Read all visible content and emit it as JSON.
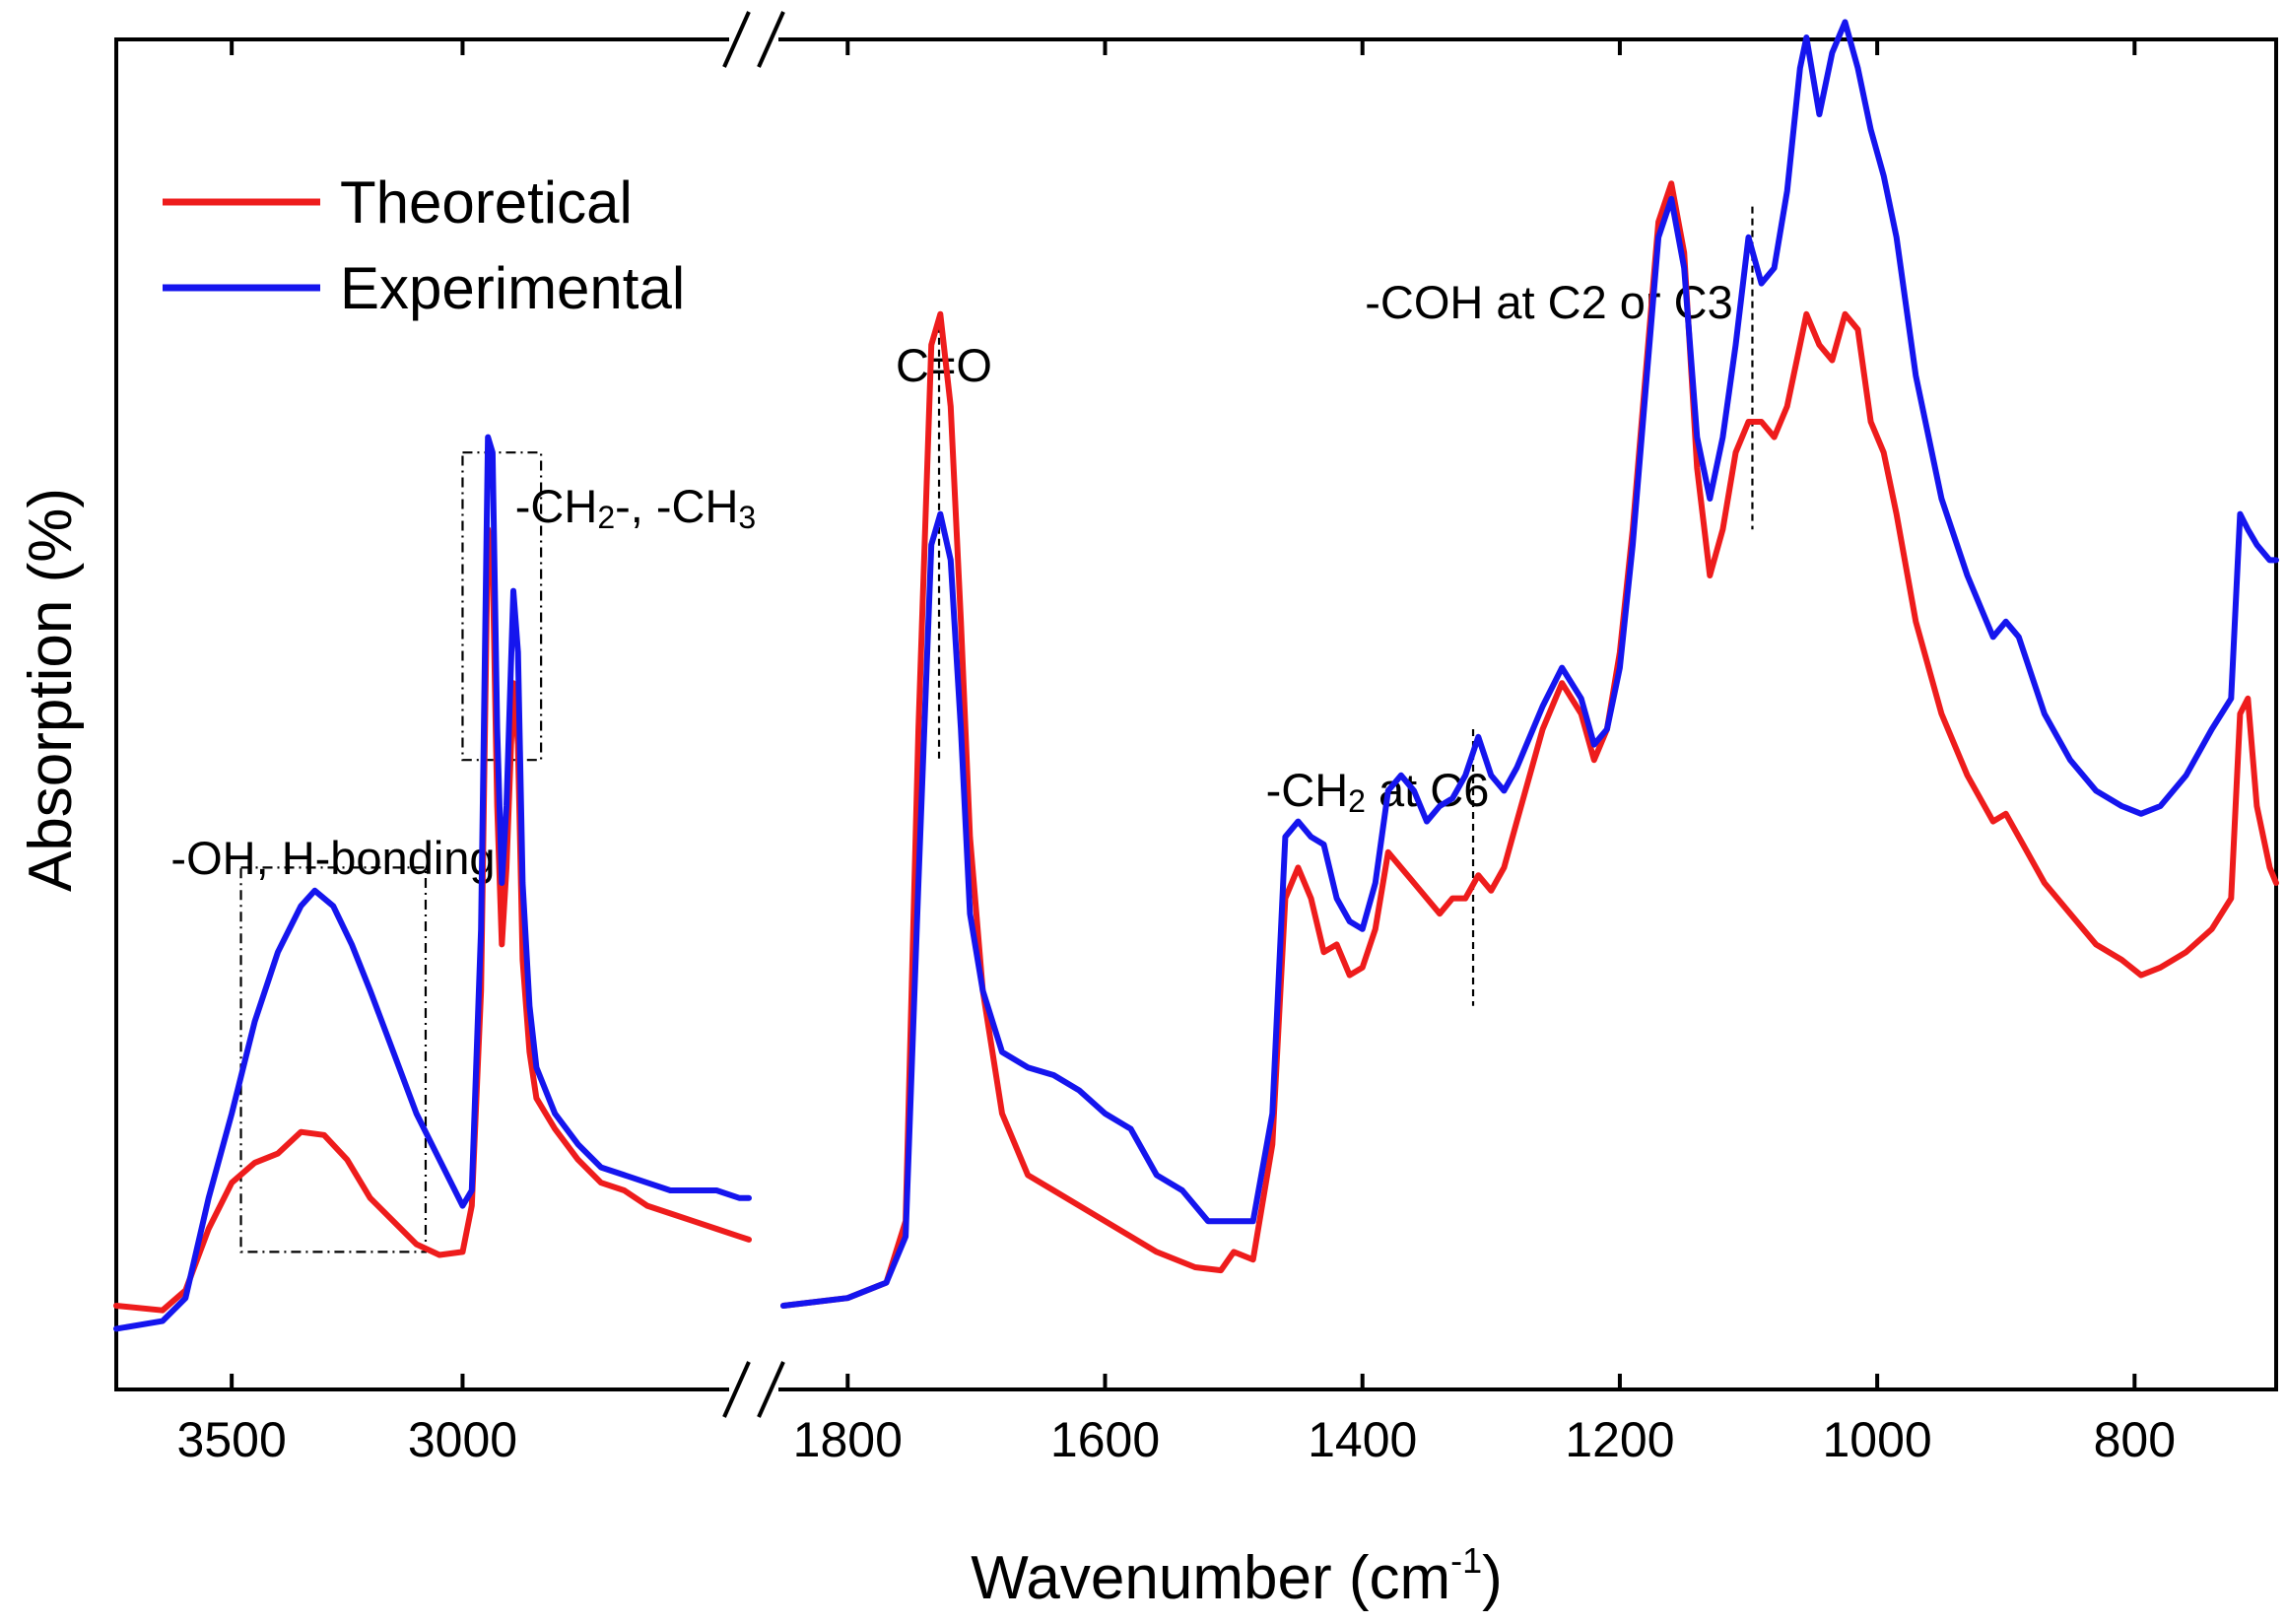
{
  "chart_data": {
    "type": "line",
    "title": "",
    "xlabel": "Wavenumber (cm",
    "xlabel_sup": "-1",
    "xlabel_close": ")",
    "ylabel": "Absorption (%)",
    "x_axis_reversed": true,
    "x_axis_broken": true,
    "segments": [
      {
        "range": [
          3750,
          2380
        ],
        "ticks": [
          3500,
          3000
        ]
      },
      {
        "range": [
          1850,
          690
        ],
        "ticks": [
          1800,
          1600,
          1400,
          1200,
          1000,
          800
        ]
      }
    ],
    "tick_labels": [
      "3500",
      "3000",
      "1800",
      "1600",
      "1400",
      "1200",
      "1000",
      "800"
    ],
    "ylim": [
      0,
      100
    ],
    "legend": {
      "placement": "top-left",
      "entries": [
        "Theoretical",
        "Experimental"
      ]
    },
    "series": [
      {
        "name": "Theoretical",
        "color": "#ee1c1c",
        "segments": [
          [
            [
              3750,
              7.5
            ],
            [
              3650,
              7.2
            ],
            [
              3600,
              8.5
            ],
            [
              3550,
              12.5
            ],
            [
              3500,
              15.5
            ],
            [
              3450,
              16.8
            ],
            [
              3400,
              17.4
            ],
            [
              3350,
              18.8
            ],
            [
              3300,
              18.6
            ],
            [
              3250,
              17
            ],
            [
              3200,
              14.5
            ],
            [
              3150,
              13
            ],
            [
              3100,
              11.5
            ],
            [
              3050,
              10.8
            ],
            [
              3000,
              11
            ],
            [
              2980,
              14
            ],
            [
              2960,
              28
            ],
            [
              2945,
              58
            ],
            [
              2935,
              56
            ],
            [
              2925,
              40
            ],
            [
              2915,
              31
            ],
            [
              2905,
              36
            ],
            [
              2890,
              48
            ],
            [
              2880,
              44
            ],
            [
              2870,
              30
            ],
            [
              2855,
              24
            ],
            [
              2840,
              21
            ],
            [
              2800,
              19
            ],
            [
              2750,
              17
            ],
            [
              2700,
              15.5
            ],
            [
              2650,
              15
            ],
            [
              2600,
              14
            ],
            [
              2550,
              13.5
            ],
            [
              2500,
              13
            ],
            [
              2450,
              12.5
            ],
            [
              2400,
              12
            ],
            [
              2380,
              11.8
            ]
          ],
          [
            [
              1850,
              7.5
            ],
            [
              1800,
              8
            ],
            [
              1770,
              9
            ],
            [
              1755,
              13
            ],
            [
              1745,
              45
            ],
            [
              1735,
              70
            ],
            [
              1728,
              72
            ],
            [
              1720,
              66
            ],
            [
              1712,
              52
            ],
            [
              1705,
              38
            ],
            [
              1695,
              28
            ],
            [
              1680,
              20
            ],
            [
              1660,
              16
            ],
            [
              1640,
              15
            ],
            [
              1600,
              13
            ],
            [
              1560,
              11
            ],
            [
              1530,
              10
            ],
            [
              1510,
              9.8
            ],
            [
              1500,
              11
            ],
            [
              1485,
              10.5
            ],
            [
              1470,
              18
            ],
            [
              1460,
              34
            ],
            [
              1450,
              36
            ],
            [
              1440,
              34
            ],
            [
              1430,
              30.5
            ],
            [
              1420,
              31
            ],
            [
              1410,
              29
            ],
            [
              1400,
              29.5
            ],
            [
              1390,
              32
            ],
            [
              1380,
              37
            ],
            [
              1370,
              36
            ],
            [
              1360,
              35
            ],
            [
              1340,
              33
            ],
            [
              1330,
              34
            ],
            [
              1320,
              34
            ],
            [
              1310,
              35.5
            ],
            [
              1300,
              34.5
            ],
            [
              1290,
              36
            ],
            [
              1280,
              39
            ],
            [
              1260,
              45
            ],
            [
              1245,
              48
            ],
            [
              1230,
              46
            ],
            [
              1220,
              43
            ],
            [
              1210,
              45
            ],
            [
              1200,
              50
            ],
            [
              1190,
              58
            ],
            [
              1180,
              68
            ],
            [
              1170,
              78
            ],
            [
              1160,
              80.5
            ],
            [
              1150,
              76
            ],
            [
              1140,
              62
            ],
            [
              1130,
              55
            ],
            [
              1120,
              58
            ],
            [
              1110,
              63
            ],
            [
              1100,
              65
            ],
            [
              1090,
              65
            ],
            [
              1080,
              64
            ],
            [
              1070,
              66
            ],
            [
              1060,
              70
            ],
            [
              1055,
              72
            ],
            [
              1045,
              70
            ],
            [
              1035,
              69
            ],
            [
              1025,
              72
            ],
            [
              1015,
              71
            ],
            [
              1005,
              65
            ],
            [
              995,
              63
            ],
            [
              985,
              59
            ],
            [
              970,
              52
            ],
            [
              950,
              46
            ],
            [
              930,
              42
            ],
            [
              910,
              39
            ],
            [
              900,
              39.5
            ],
            [
              890,
              38
            ],
            [
              870,
              35
            ],
            [
              850,
              33
            ],
            [
              830,
              31
            ],
            [
              810,
              30
            ],
            [
              795,
              29
            ],
            [
              780,
              29.5
            ],
            [
              760,
              30.5
            ],
            [
              740,
              32
            ],
            [
              725,
              34
            ],
            [
              718,
              46
            ],
            [
              712,
              47
            ],
            [
              705,
              40
            ],
            [
              695,
              36
            ],
            [
              690,
              35
            ]
          ]
        ]
      },
      {
        "name": "Experimental",
        "color": "#1515ee",
        "segments": [
          [
            [
              3750,
              6
            ],
            [
              3650,
              6.5
            ],
            [
              3600,
              8
            ],
            [
              3550,
              14.5
            ],
            [
              3500,
              20
            ],
            [
              3450,
              26
            ],
            [
              3400,
              30.5
            ],
            [
              3350,
              33.5
            ],
            [
              3320,
              34.5
            ],
            [
              3280,
              33.5
            ],
            [
              3240,
              31
            ],
            [
              3200,
              28
            ],
            [
              3150,
              24
            ],
            [
              3100,
              20
            ],
            [
              3050,
              17
            ],
            [
              3000,
              14
            ],
            [
              2980,
              15
            ],
            [
              2960,
              32
            ],
            [
              2945,
              64
            ],
            [
              2935,
              63
            ],
            [
              2925,
              45
            ],
            [
              2915,
              35
            ],
            [
              2905,
              40
            ],
            [
              2890,
              54
            ],
            [
              2880,
              50
            ],
            [
              2870,
              35
            ],
            [
              2855,
              27
            ],
            [
              2840,
              23
            ],
            [
              2800,
              20
            ],
            [
              2750,
              18
            ],
            [
              2700,
              16.5
            ],
            [
              2650,
              16
            ],
            [
              2600,
              15.5
            ],
            [
              2550,
              15
            ],
            [
              2500,
              15
            ],
            [
              2450,
              15
            ],
            [
              2400,
              14.5
            ],
            [
              2380,
              14.5
            ]
          ],
          [
            [
              1850,
              7.5
            ],
            [
              1800,
              8
            ],
            [
              1770,
              9
            ],
            [
              1755,
              12
            ],
            [
              1745,
              35
            ],
            [
              1735,
              57
            ],
            [
              1728,
              59
            ],
            [
              1720,
              56
            ],
            [
              1712,
              45
            ],
            [
              1705,
              33
            ],
            [
              1695,
              28
            ],
            [
              1680,
              24
            ],
            [
              1660,
              23
            ],
            [
              1640,
              22.5
            ],
            [
              1620,
              21.5
            ],
            [
              1600,
              20
            ],
            [
              1580,
              19
            ],
            [
              1560,
              16
            ],
            [
              1540,
              15
            ],
            [
              1520,
              13
            ],
            [
              1500,
              13
            ],
            [
              1485,
              13
            ],
            [
              1470,
              20
            ],
            [
              1460,
              38
            ],
            [
              1450,
              39
            ],
            [
              1440,
              38
            ],
            [
              1430,
              37.5
            ],
            [
              1420,
              34
            ],
            [
              1410,
              32.5
            ],
            [
              1400,
              32
            ],
            [
              1390,
              35
            ],
            [
              1380,
              41
            ],
            [
              1370,
              42
            ],
            [
              1360,
              41
            ],
            [
              1350,
              39
            ],
            [
              1340,
              40
            ],
            [
              1330,
              40.5
            ],
            [
              1320,
              42
            ],
            [
              1310,
              44.5
            ],
            [
              1300,
              42
            ],
            [
              1290,
              41
            ],
            [
              1280,
              42.5
            ],
            [
              1260,
              46.5
            ],
            [
              1245,
              49
            ],
            [
              1230,
              47
            ],
            [
              1220,
              44
            ],
            [
              1210,
              45
            ],
            [
              1200,
              49
            ],
            [
              1190,
              57
            ],
            [
              1180,
              67
            ],
            [
              1170,
              77
            ],
            [
              1160,
              79.5
            ],
            [
              1150,
              75
            ],
            [
              1140,
              64
            ],
            [
              1130,
              60
            ],
            [
              1120,
              64
            ],
            [
              1110,
              70
            ],
            [
              1100,
              77
            ],
            [
              1090,
              74
            ],
            [
              1080,
              75
            ],
            [
              1070,
              80
            ],
            [
              1060,
              88
            ],
            [
              1055,
              90
            ],
            [
              1045,
              85
            ],
            [
              1035,
              89
            ],
            [
              1025,
              91
            ],
            [
              1015,
              88
            ],
            [
              1005,
              84
            ],
            [
              995,
              81
            ],
            [
              985,
              77
            ],
            [
              970,
              68
            ],
            [
              950,
              60
            ],
            [
              930,
              55
            ],
            [
              910,
              51
            ],
            [
              900,
              52
            ],
            [
              890,
              51
            ],
            [
              870,
              46
            ],
            [
              850,
              43
            ],
            [
              830,
              41
            ],
            [
              810,
              40
            ],
            [
              795,
              39.5
            ],
            [
              780,
              40
            ],
            [
              760,
              42
            ],
            [
              740,
              45
            ],
            [
              725,
              47
            ],
            [
              718,
              59
            ],
            [
              712,
              58
            ],
            [
              705,
              57
            ],
            [
              695,
              56
            ],
            [
              690,
              56
            ]
          ]
        ]
      }
    ],
    "annotations": [
      {
        "label": "-OH, H-bonding",
        "type": "box",
        "x1": 3480,
        "x2": 3080,
        "y1": 11,
        "y2": 36
      },
      {
        "label_pre": "-CH",
        "label_sub1": "2",
        "label_mid": "-, -CH",
        "label_sub2": "3",
        "type": "box",
        "x1": 3000,
        "x2": 2830,
        "y1": 43,
        "y2": 63
      },
      {
        "label": "C=O",
        "type": "line",
        "x": 1729,
        "y1": 43,
        "y2": 72
      },
      {
        "label_pre": "-CH",
        "label_sub1": "2",
        "label_mid": " at C6",
        "type": "line",
        "x": 1314,
        "y1": 27,
        "y2": 45
      },
      {
        "label": "-COH at C2 or C3",
        "type": "line",
        "x": 1097,
        "y1": 58,
        "y2": 79
      }
    ]
  }
}
